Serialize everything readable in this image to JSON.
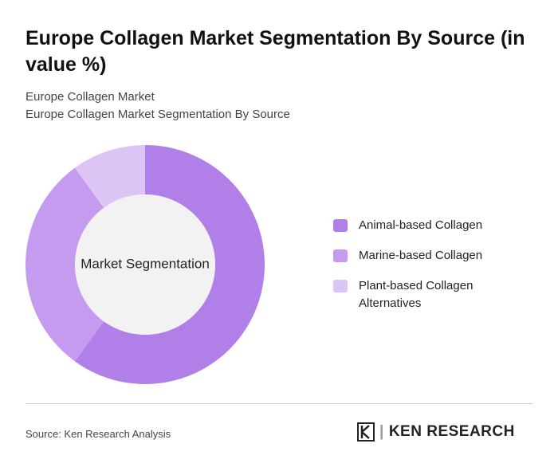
{
  "chart_data": {
    "type": "donut",
    "title": "Europe Collagen Market Segmentation By Source (in value %)",
    "subtitle": [
      "Europe Collagen Market",
      "Europe Collagen Market Segmentation By Source"
    ],
    "center_label": "Market Segmentation",
    "categories": [
      "Animal-based Collagen",
      "Marine-based Collagen",
      "Plant-based Collagen Alternatives"
    ],
    "values": [
      60,
      30,
      10
    ],
    "colors": [
      "#b07fe8",
      "#c49bef",
      "#dcc4f5"
    ]
  },
  "footer": {
    "source": "Source: Ken Research Analysis",
    "brand": "KEN RESEARCH"
  }
}
